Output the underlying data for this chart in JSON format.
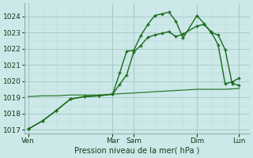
{
  "background_color": "#cce8e8",
  "grid_color_major": "#aacccc",
  "grid_color_minor": "#c0dede",
  "line_color1": "#1a6b1a",
  "line_color2": "#1a6b1a",
  "line_color3": "#2d7a2d",
  "xlabel": "Pression niveau de la mer( hPa )",
  "ylim": [
    1016.8,
    1024.8
  ],
  "yticks": [
    1017,
    1018,
    1019,
    1020,
    1021,
    1022,
    1023,
    1024
  ],
  "xtick_labels": [
    "Ven",
    "Mar",
    "Sam",
    "Dim",
    "Lun"
  ],
  "xtick_positions": [
    0,
    12,
    15,
    24,
    30
  ],
  "vline_positions": [
    0,
    12,
    15,
    24,
    30
  ],
  "xlim": [
    -0.5,
    31.5
  ],
  "series1_x": [
    0,
    2,
    4,
    6,
    8,
    10,
    12,
    13,
    14,
    15,
    16,
    17,
    18,
    19,
    20,
    21,
    22,
    24,
    25,
    26,
    27,
    28,
    29,
    30
  ],
  "series1_y": [
    1017.05,
    1017.55,
    1018.2,
    1018.9,
    1019.05,
    1019.1,
    1019.2,
    1020.5,
    1021.85,
    1021.9,
    1022.8,
    1023.5,
    1024.05,
    1024.15,
    1024.25,
    1023.7,
    1022.65,
    1024.05,
    1023.55,
    1023.0,
    1022.85,
    1021.95,
    1019.85,
    1019.75
  ],
  "series2_x": [
    0,
    2,
    4,
    6,
    8,
    10,
    12,
    13,
    14,
    15,
    16,
    17,
    18,
    19,
    20,
    21,
    22,
    24,
    25,
    26,
    27,
    28,
    29,
    30
  ],
  "series2_y": [
    1017.05,
    1017.55,
    1018.2,
    1018.9,
    1019.05,
    1019.1,
    1019.2,
    1019.8,
    1020.4,
    1021.8,
    1022.2,
    1022.7,
    1022.85,
    1022.95,
    1023.05,
    1022.75,
    1022.9,
    1023.4,
    1023.5,
    1023.05,
    1022.25,
    1019.85,
    1019.95,
    1020.2
  ],
  "series3_x": [
    0,
    2,
    4,
    6,
    8,
    10,
    12,
    14,
    16,
    18,
    20,
    22,
    24,
    26,
    28,
    30
  ],
  "series3_y": [
    1019.05,
    1019.1,
    1019.1,
    1019.15,
    1019.15,
    1019.15,
    1019.2,
    1019.25,
    1019.3,
    1019.35,
    1019.4,
    1019.45,
    1019.5,
    1019.5,
    1019.5,
    1019.55
  ]
}
